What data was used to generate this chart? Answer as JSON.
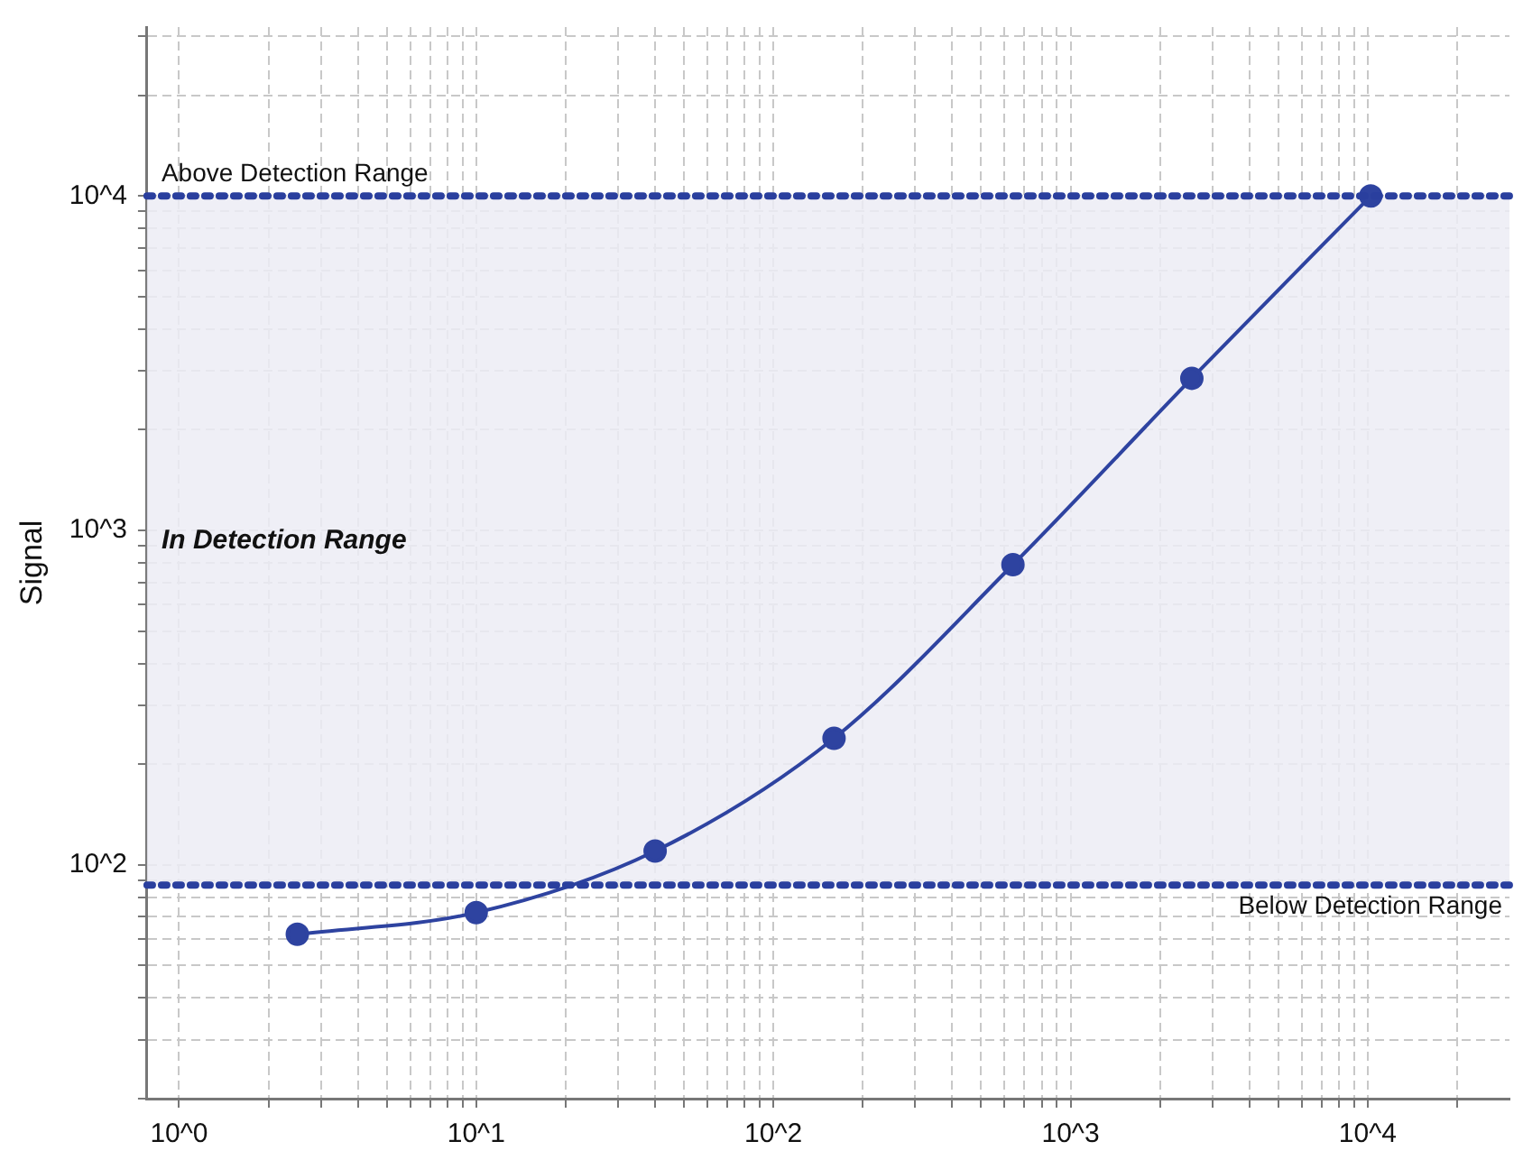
{
  "chart_data": {
    "type": "line",
    "ylabel": "Signal",
    "x": [
      2.5,
      10,
      40,
      160,
      640,
      2560,
      10240
    ],
    "series": [
      {
        "color": "#2e43a0",
        "values": [
          62,
          72,
          110,
          239,
          790,
          2850,
          10000
        ]
      }
    ],
    "log": "xy",
    "grid": true,
    "legend": false,
    "marker": "circle",
    "line_style": "solid",
    "xlim": [
      0.78,
      30000
    ],
    "ylim": [
      20,
      32000
    ],
    "xticks": [
      {
        "value": 1,
        "label": "10^0"
      },
      {
        "value": 2,
        "label": null
      },
      {
        "value": 3,
        "label": null
      },
      {
        "value": 4,
        "label": null
      },
      {
        "value": 5,
        "label": null
      },
      {
        "value": 6,
        "label": null
      },
      {
        "value": 7,
        "label": null
      },
      {
        "value": 8,
        "label": null
      },
      {
        "value": 9,
        "label": null
      },
      {
        "value": 10,
        "label": "10^1"
      },
      {
        "value": 20,
        "label": null
      },
      {
        "value": 30,
        "label": null
      },
      {
        "value": 40,
        "label": null
      },
      {
        "value": 50,
        "label": null
      },
      {
        "value": 60,
        "label": null
      },
      {
        "value": 70,
        "label": null
      },
      {
        "value": 80,
        "label": null
      },
      {
        "value": 90,
        "label": null
      },
      {
        "value": 100,
        "label": "10^2"
      },
      {
        "value": 200,
        "label": null
      },
      {
        "value": 300,
        "label": null
      },
      {
        "value": 400,
        "label": null
      },
      {
        "value": 500,
        "label": null
      },
      {
        "value": 600,
        "label": null
      },
      {
        "value": 700,
        "label": null
      },
      {
        "value": 800,
        "label": null
      },
      {
        "value": 900,
        "label": null
      },
      {
        "value": 1000,
        "label": "10^3"
      },
      {
        "value": 2000,
        "label": null
      },
      {
        "value": 3000,
        "label": null
      },
      {
        "value": 4000,
        "label": null
      },
      {
        "value": 5000,
        "label": null
      },
      {
        "value": 6000,
        "label": null
      },
      {
        "value": 7000,
        "label": null
      },
      {
        "value": 8000,
        "label": null
      },
      {
        "value": 9000,
        "label": null
      },
      {
        "value": 10000,
        "label": "10^4"
      },
      {
        "value": 20000,
        "label": null
      }
    ],
    "yticks": [
      {
        "value": 20,
        "label": null
      },
      {
        "value": 30,
        "label": null
      },
      {
        "value": 40,
        "label": null
      },
      {
        "value": 50,
        "label": null
      },
      {
        "value": 60,
        "label": null
      },
      {
        "value": 70,
        "label": null
      },
      {
        "value": 80,
        "label": null
      },
      {
        "value": 90,
        "label": null
      },
      {
        "value": 100,
        "label": "10^2"
      },
      {
        "value": 200,
        "label": null
      },
      {
        "value": 300,
        "label": null
      },
      {
        "value": 400,
        "label": null
      },
      {
        "value": 500,
        "label": null
      },
      {
        "value": 600,
        "label": null
      },
      {
        "value": 700,
        "label": null
      },
      {
        "value": 800,
        "label": null
      },
      {
        "value": 900,
        "label": null
      },
      {
        "value": 1000,
        "label": "10^3"
      },
      {
        "value": 2000,
        "label": null
      },
      {
        "value": 3000,
        "label": null
      },
      {
        "value": 4000,
        "label": null
      },
      {
        "value": 5000,
        "label": null
      },
      {
        "value": 6000,
        "label": null
      },
      {
        "value": 7000,
        "label": null
      },
      {
        "value": 8000,
        "label": null
      },
      {
        "value": 9000,
        "label": null
      },
      {
        "value": 10000,
        "label": "10^4"
      },
      {
        "value": 20000,
        "label": null
      },
      {
        "value": 30000,
        "label": null
      }
    ],
    "bands": [
      {
        "axis": "y",
        "from": 87,
        "to": 10000,
        "label": "In Detection Range",
        "color": "#ececf5"
      }
    ],
    "ref_lines": [
      {
        "axis": "y",
        "value": 10000,
        "label": "Above Detection Range",
        "color": "#2a3f9e",
        "line_style": "dotted"
      },
      {
        "axis": "y",
        "value": 87,
        "label": "Below Detection Range",
        "color": "#2a3f9e",
        "line_style": "dotted"
      }
    ]
  }
}
